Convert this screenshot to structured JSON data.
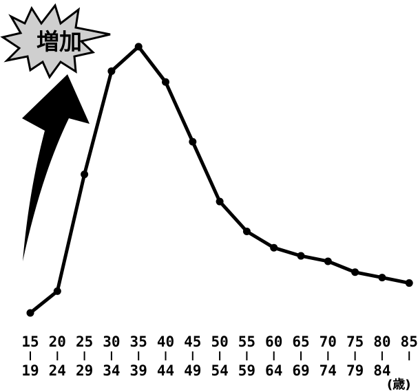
{
  "chart_data": {
    "type": "line",
    "title": "",
    "xlabel": "",
    "ylabel": "",
    "x_unit": "(歳)",
    "categories": [
      {
        "top": "15",
        "bottom": "19"
      },
      {
        "top": "20",
        "bottom": "24"
      },
      {
        "top": "25",
        "bottom": "29"
      },
      {
        "top": "30",
        "bottom": "34"
      },
      {
        "top": "35",
        "bottom": "39"
      },
      {
        "top": "40",
        "bottom": "44"
      },
      {
        "top": "45",
        "bottom": "49"
      },
      {
        "top": "50",
        "bottom": "54"
      },
      {
        "top": "55",
        "bottom": "59"
      },
      {
        "top": "60",
        "bottom": "64"
      },
      {
        "top": "65",
        "bottom": "69"
      },
      {
        "top": "70",
        "bottom": "74"
      },
      {
        "top": "75",
        "bottom": "79"
      },
      {
        "top": "80",
        "bottom": "84"
      },
      {
        "top": "85",
        "bottom": ""
      }
    ],
    "series": [
      {
        "values": [
          0,
          8,
          51,
          89,
          98,
          85,
          63,
          41,
          30,
          24,
          21,
          19,
          15,
          13,
          11
        ]
      }
    ],
    "ylim": [
      0,
      100
    ],
    "grid": false,
    "legend": "none",
    "line_color": "#000000"
  },
  "annotation": {
    "label": "増加",
    "icon": "burst-icon",
    "arrow_icon": "up-arrow-icon",
    "burst_fill": "#cfcfcf"
  }
}
